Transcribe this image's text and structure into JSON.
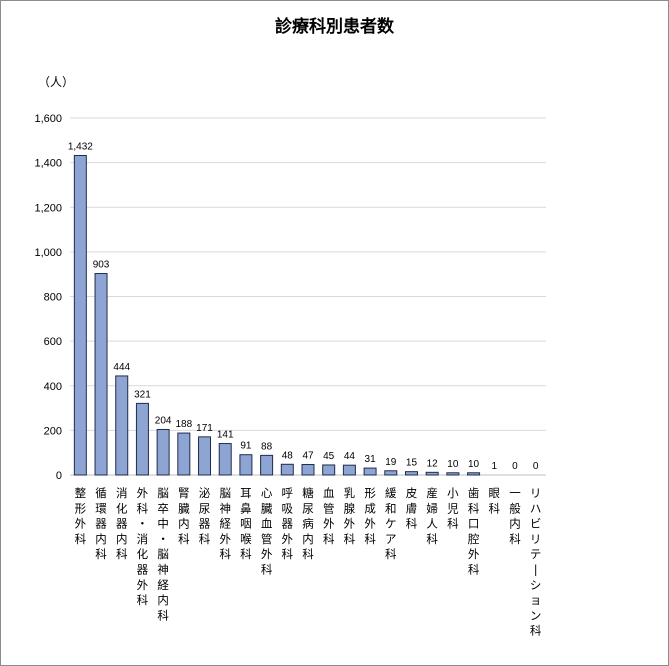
{
  "chart_data": {
    "type": "bar",
    "title": "診療科別患者数",
    "unit_label": "（人）",
    "ylim": [
      0,
      1600
    ],
    "y_ticks": [
      "0",
      "200",
      "400",
      "600",
      "800",
      "1,000",
      "1,200",
      "1,400",
      "1,600"
    ],
    "y_tick_values": [
      0,
      200,
      400,
      600,
      800,
      1000,
      1200,
      1400,
      1600
    ],
    "grid": true,
    "bar_color": "#8EA4D2",
    "bar_border_color": "#1F2D4D",
    "categories": [
      "整形外科",
      "循環器内科",
      "消化器内科",
      "外科・消化器外科",
      "脳卒中・脳神経内科",
      "腎臓内科",
      "泌尿器科",
      "脳神経外科",
      "耳鼻咽喉科",
      "心臓血管外科",
      "呼吸器外科",
      "糖尿病内科",
      "血管外科",
      "乳腺外科",
      "形成外科",
      "緩和ケア科",
      "皮膚科",
      "産婦人科",
      "小児科",
      "歯科口腔外科",
      "眼科",
      "一般内科",
      "リハビリテーション科"
    ],
    "values": [
      1432,
      903,
      444,
      321,
      204,
      188,
      171,
      141,
      91,
      88,
      48,
      47,
      45,
      44,
      31,
      19,
      15,
      12,
      10,
      10,
      1,
      0,
      0
    ],
    "data_labels": [
      "1,432",
      "903",
      "444",
      "321",
      "204",
      "188",
      "171",
      "141",
      "91",
      "88",
      "48",
      "47",
      "45",
      "44",
      "31",
      "19",
      "15",
      "12",
      "10",
      "10",
      "1",
      "0",
      "0"
    ]
  }
}
